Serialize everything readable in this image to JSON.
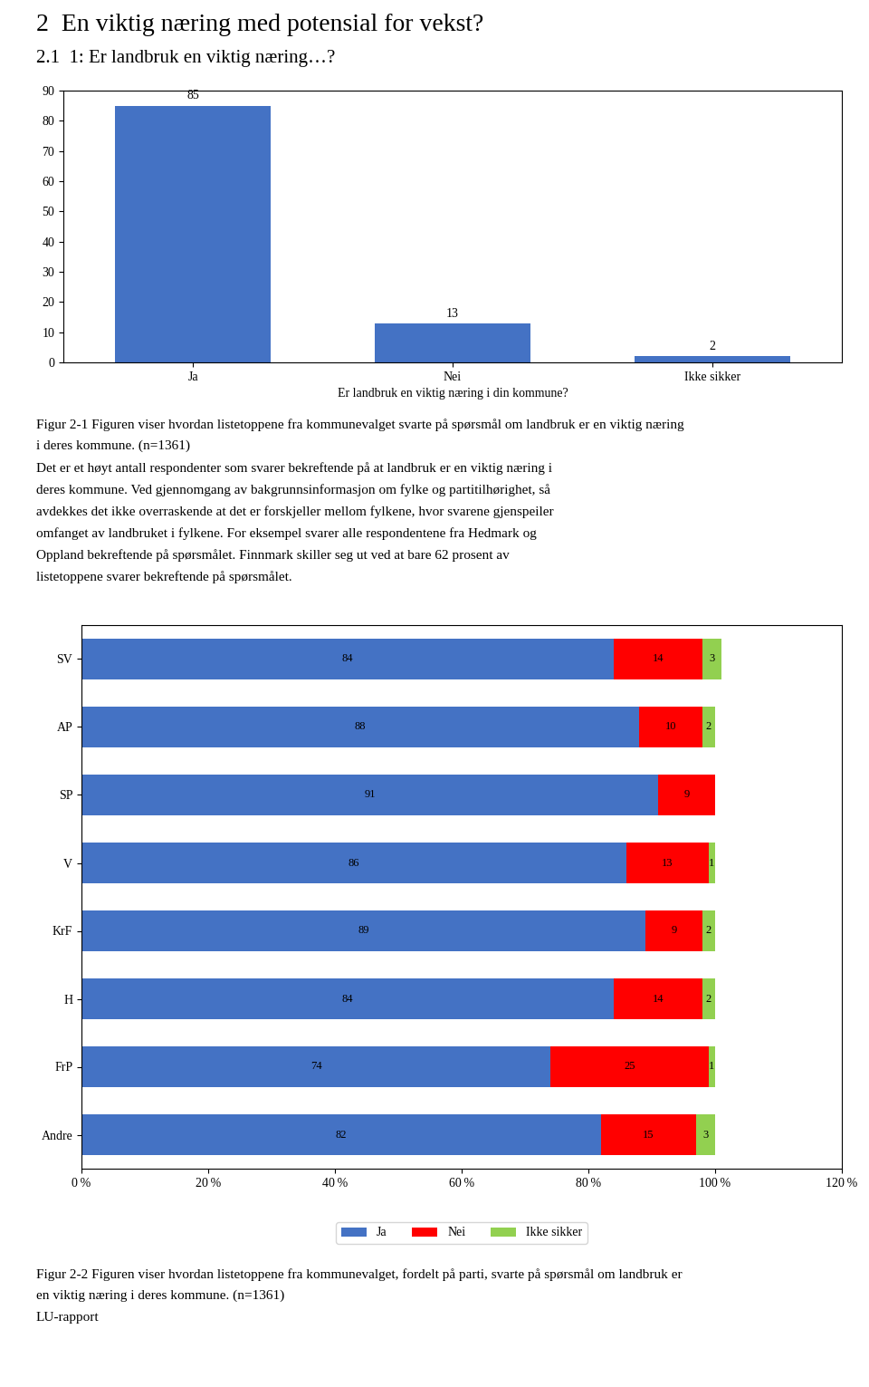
{
  "chart_data": [
    {
      "type": "bar",
      "title": "2  En viktig næring med potensial for vekst?",
      "subtitle": "2.1  1: Er landbruk en viktig næring…?",
      "categories": [
        "Ja",
        "Nei",
        "Ikke sikker"
      ],
      "values": [
        85,
        13,
        2
      ],
      "color": "#4472C4",
      "xlabel": "Er landbruk en viktig næring i din kommune?",
      "ylim": [
        0,
        90
      ],
      "yticks": [
        0,
        10,
        20,
        30,
        40,
        50,
        60,
        70,
        80,
        90
      ],
      "data_labels": true,
      "annotations": [
        "Figur 2-1 Figuren viser hvordan listetoppene fra kommunevalget svarte på spørsmål om landbruk er en viktig næring",
        "i deres kommune. (n=1361)",
        "Det er et høyt antall respondenter som svarer bekreftende på at landbruk er en viktig næring i",
        "deres kommune. Ved gjennomgang av bakgrunnsinformasjon om fylke og partitilhørighet, så",
        "avdekkes det ikke overraskende at det er forskjeller mellom fylkene, hvor svarene gjenspeiler",
        "omfanget av landbruket i fylkene. For eksempel svarer alle respondentene fra Hedmark og",
        "Oppland bekreftende på spørsmålet. Finnmark skiller seg ut ved at bare 62 prosent av",
        "listetoppene svarer bekreftende på spørsmålet."
      ]
    },
    {
      "type": "bar",
      "orientation": "horizontal",
      "stacked": true,
      "categories": [
        "SV",
        "AP",
        "SP",
        "V",
        "KrF",
        "H",
        "FrP",
        "Andre"
      ],
      "series": [
        {
          "name": "Ja",
          "color": "#4472C4",
          "values": [
            84,
            88,
            91,
            86,
            89,
            84,
            74,
            82
          ]
        },
        {
          "name": "Nei",
          "color": "#FF0000",
          "values": [
            14,
            10,
            9,
            13,
            9,
            14,
            25,
            15
          ]
        },
        {
          "name": "Ikke sikker",
          "color": "#92D050",
          "values": [
            3,
            2,
            0,
            1,
            2,
            2,
            1,
            3
          ]
        }
      ],
      "xlim": [
        0,
        120
      ],
      "xticks": [
        {
          "value": 0,
          "label": "0 %"
        },
        {
          "value": 20,
          "label": "20 %"
        },
        {
          "value": 40,
          "label": "40 %"
        },
        {
          "value": 60,
          "label": "60 %"
        },
        {
          "value": 80,
          "label": "80 %"
        },
        {
          "value": 100,
          "label": "100 %"
        },
        {
          "value": 120,
          "label": "120 %"
        }
      ],
      "data_labels": true,
      "legend": "lower center",
      "annotations": [
        "Figur 2-2 Figuren viser hvordan listetoppene fra kommunevalget, fordelt på parti, svarte på spørsmål om landbruk er",
        "en viktig næring i deres kommune. (n=1361)",
        "LU-rapport"
      ]
    }
  ]
}
